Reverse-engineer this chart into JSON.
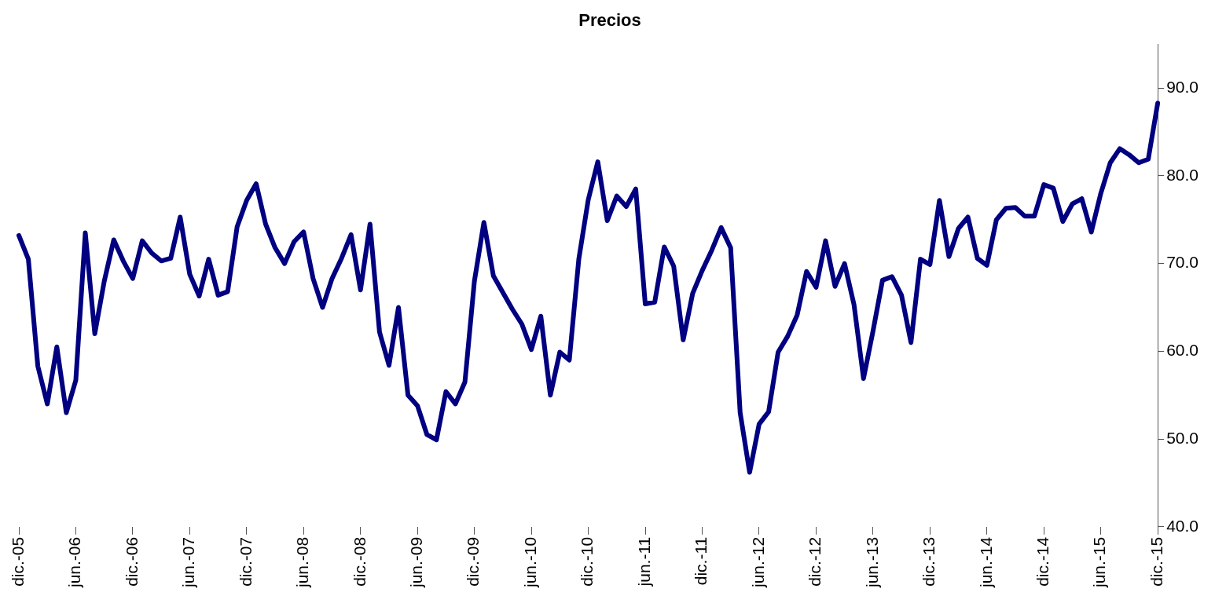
{
  "chart_data": {
    "type": "line",
    "title": "Precios",
    "categories": [
      "dic.-05",
      null,
      null,
      null,
      null,
      null,
      "jun.-06",
      null,
      null,
      null,
      null,
      null,
      "dic.-06",
      null,
      null,
      null,
      null,
      null,
      "jun.-07",
      null,
      null,
      null,
      null,
      null,
      "dic.-07",
      null,
      null,
      null,
      null,
      null,
      "jun.-08",
      null,
      null,
      null,
      null,
      null,
      "dic.-08",
      null,
      null,
      null,
      null,
      null,
      "jun.-09",
      null,
      null,
      null,
      null,
      null,
      "dic.-09",
      null,
      null,
      null,
      null,
      null,
      "jun.-10",
      null,
      null,
      null,
      null,
      null,
      "dic.-10",
      null,
      null,
      null,
      null,
      null,
      "jun.-11",
      null,
      null,
      null,
      null,
      null,
      "dic.-11",
      null,
      null,
      null,
      null,
      null,
      "jun.-12",
      null,
      null,
      null,
      null,
      null,
      "dic.-12",
      null,
      null,
      null,
      null,
      null,
      "jun.-13",
      null,
      null,
      null,
      null,
      null,
      "dic.-13",
      null,
      null,
      null,
      null,
      null,
      "jun.-14",
      null,
      null,
      null,
      null,
      null,
      "dic.-14",
      null,
      null,
      null,
      null,
      null,
      "jun.-15",
      null,
      null,
      null,
      null,
      null,
      "dic.-15"
    ],
    "series": [
      {
        "color": "#000080",
        "values": [
          73.2,
          70.5,
          58.3,
          54,
          60.5,
          53,
          56.7,
          73.5,
          62,
          68,
          72.7,
          70.3,
          68.3,
          72.6,
          71.2,
          70.3,
          70.6,
          75.3,
          68.8,
          66.3,
          70.5,
          66.4,
          66.8,
          74.2,
          77.2,
          79.1,
          74.5,
          71.8,
          70,
          72.5,
          73.6,
          68.3,
          65,
          68.3,
          70.6,
          73.3,
          67,
          74.5,
          62.2,
          58.4,
          65,
          55,
          53.8,
          50.5,
          49.9,
          55.4,
          54,
          56.5,
          68,
          74.7,
          68.6,
          66.7,
          64.8,
          63.1,
          60.2,
          64,
          55,
          59.9,
          59,
          70.5,
          77.3,
          81.6,
          74.9,
          77.7,
          76.5,
          78.5,
          65.4,
          65.6,
          71.9,
          69.7,
          61.3,
          66.6,
          69.2,
          71.5,
          74.1,
          71.8,
          53,
          46.2,
          51.7,
          53.1,
          59.9,
          61.7,
          64.1,
          69.1,
          67.3,
          72.6,
          67.4,
          70,
          65.3,
          56.9,
          62.3,
          68.1,
          68.5,
          66.4,
          61,
          70.5,
          69.9,
          77.2,
          70.8,
          74,
          75.3,
          70.6,
          69.8,
          75,
          76.3,
          76.4,
          75.4,
          75.4,
          79,
          78.6,
          74.8,
          76.8,
          77.4,
          73.6,
          78,
          81.5,
          83.1,
          82.4,
          81.5,
          81.9,
          88.3
        ]
      }
    ],
    "ylim": [
      40,
      95
    ],
    "yticks": [
      {
        "value": 40,
        "label": "40.0"
      },
      {
        "value": 50,
        "label": "50.0"
      },
      {
        "value": 60,
        "label": "60.0"
      },
      {
        "value": 70,
        "label": "70.0"
      },
      {
        "value": 80,
        "label": "80.0"
      },
      {
        "value": 90,
        "label": "90.0"
      }
    ],
    "grid": false,
    "legend": false,
    "marker": "none",
    "line_style": "solid"
  }
}
